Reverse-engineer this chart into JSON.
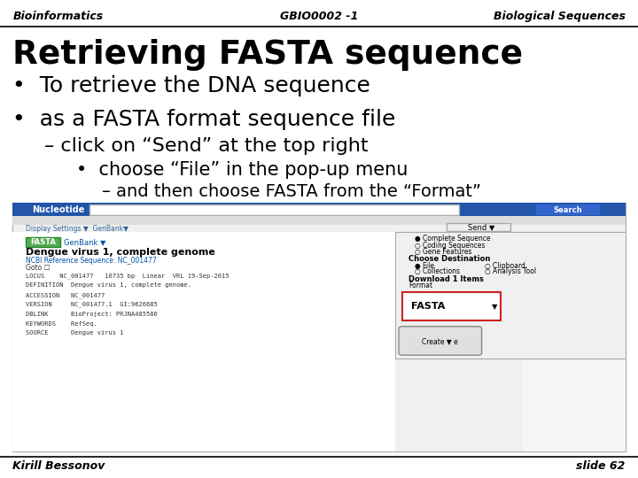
{
  "bg_color": "#ffffff",
  "header_left": "Bioinformatics",
  "header_center": "GBIO0002 -1",
  "header_right": "Biological Sequences",
  "header_color": "#000000",
  "title": "Retrieving FASTA sequence",
  "bullet1": "•  To retrieve the DNA sequence",
  "bullet2": "•  as a FASTA format sequence file",
  "dash1": "– click on “Send” at the top right",
  "bullet3": "•  choose “File” in the pop-up menu",
  "dash2": "– and then choose FASTA from the “Format”",
  "footer_left": "Kirill Bessonov",
  "footer_right": "slide 62",
  "text_color": "#000000",
  "line_color": "#000000"
}
